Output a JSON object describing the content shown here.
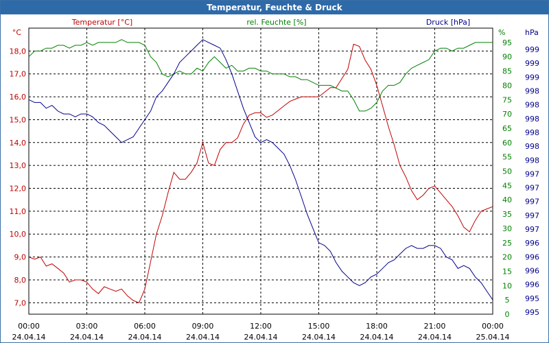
{
  "window": {
    "title": "Temperatur, Feuchte & Druck"
  },
  "chart_data": {
    "type": "line",
    "title": "Temperatur, Feuchte & Druck",
    "grid": true,
    "x_ticks": [
      {
        "time": "00:00",
        "date": "24.04.14"
      },
      {
        "time": "03:00",
        "date": "24.04.14"
      },
      {
        "time": "06:00",
        "date": "24.04.14"
      },
      {
        "time": "09:00",
        "date": "24.04.14"
      },
      {
        "time": "12:00",
        "date": "24.04.14"
      },
      {
        "time": "15:00",
        "date": "24.04.14"
      },
      {
        "time": "18:00",
        "date": "24.04.14"
      },
      {
        "time": "21:00",
        "date": "24.04.14"
      },
      {
        "time": "00:00",
        "date": "25.04.14"
      }
    ],
    "x_range_hours": [
      0,
      24
    ],
    "axes": {
      "temperature": {
        "label": "Temperatur [°C]",
        "unit": "°C",
        "color": "#c00000",
        "range": [
          6.5,
          19.0
        ],
        "ticks": [
          "18,0",
          "17,0",
          "16,0",
          "15,0",
          "14,0",
          "13,0",
          "12,0",
          "11,0",
          "10,0",
          "9,0",
          "8,0",
          "7,0"
        ],
        "tick_values": [
          18,
          17,
          16,
          15,
          14,
          13,
          12,
          11,
          10,
          9,
          8,
          7
        ]
      },
      "humidity": {
        "label": "rel. Feuchte [%]",
        "unit": "%",
        "color": "#008000",
        "range": [
          0,
          100
        ],
        "ticks": [
          "95",
          "90",
          "85",
          "80",
          "75",
          "70",
          "65",
          "60",
          "55",
          "50",
          "45",
          "40",
          "35",
          "30",
          "25",
          "20",
          "15",
          "10",
          "5",
          "0"
        ],
        "tick_values": [
          95,
          90,
          85,
          80,
          75,
          70,
          65,
          60,
          55,
          50,
          45,
          40,
          35,
          30,
          25,
          20,
          15,
          10,
          5,
          0
        ]
      },
      "pressure": {
        "label": "Druck [hPa]",
        "unit": "hPa",
        "color": "#00008b",
        "ticks": [
          "999",
          "999",
          "999",
          "998",
          "998",
          "998",
          "998",
          "998",
          "998",
          "997",
          "997",
          "997",
          "997",
          "997",
          "996",
          "996",
          "996",
          "996",
          "995",
          "995"
        ]
      }
    },
    "series": [
      {
        "name": "Temperatur [°C]",
        "axis": "temperature",
        "color": "#c00000",
        "x": [
          0,
          0.3,
          0.6,
          0.9,
          1.2,
          1.5,
          1.8,
          2.1,
          2.4,
          2.7,
          3.0,
          3.3,
          3.6,
          3.9,
          4.2,
          4.5,
          4.8,
          5.1,
          5.4,
          5.7,
          6.0,
          6.3,
          6.6,
          6.9,
          7.2,
          7.5,
          7.8,
          8.1,
          8.4,
          8.7,
          9.0,
          9.3,
          9.6,
          9.9,
          10.2,
          10.5,
          10.8,
          11.1,
          11.4,
          11.7,
          12.0,
          12.3,
          12.6,
          12.9,
          13.2,
          13.5,
          13.8,
          14.1,
          14.4,
          14.7,
          15.0,
          15.3,
          15.6,
          15.9,
          16.2,
          16.5,
          16.8,
          17.1,
          17.4,
          17.7,
          18.0,
          18.3,
          18.6,
          18.9,
          19.2,
          19.5,
          19.8,
          20.1,
          20.4,
          20.7,
          21.0,
          21.3,
          21.6,
          21.9,
          22.2,
          22.5,
          22.8,
          23.1,
          23.4,
          23.7,
          24.0
        ],
        "values": [
          9.0,
          8.9,
          9.0,
          8.6,
          8.7,
          8.5,
          8.3,
          7.9,
          8.0,
          8.0,
          7.9,
          7.6,
          7.4,
          7.7,
          7.6,
          7.5,
          7.6,
          7.3,
          7.1,
          7.0,
          7.6,
          8.8,
          10.0,
          10.8,
          11.8,
          12.7,
          12.4,
          12.4,
          12.7,
          13.1,
          14.0,
          13.1,
          13.0,
          13.7,
          14.0,
          14.0,
          14.2,
          14.8,
          15.2,
          15.3,
          15.3,
          15.1,
          15.2,
          15.4,
          15.6,
          15.8,
          15.9,
          16.0,
          16.0,
          16.0,
          16.0,
          16.2,
          16.4,
          16.4,
          16.8,
          17.2,
          18.3,
          18.2,
          17.6,
          17.2,
          16.5,
          15.6,
          14.7,
          13.9,
          13.0,
          12.5,
          11.9,
          11.5,
          11.7,
          12.0,
          12.1,
          11.8,
          11.5,
          11.2,
          10.8,
          10.3,
          10.1,
          10.6,
          11.0,
          11.1,
          11.2
        ]
      },
      {
        "name": "rel. Feuchte [%]",
        "axis": "humidity",
        "color": "#008000",
        "x": [
          0,
          0.3,
          0.6,
          0.9,
          1.2,
          1.5,
          1.8,
          2.1,
          2.4,
          2.7,
          3.0,
          3.3,
          3.6,
          3.9,
          4.2,
          4.5,
          4.8,
          5.1,
          5.4,
          5.7,
          6.0,
          6.3,
          6.6,
          6.9,
          7.2,
          7.5,
          7.8,
          8.1,
          8.4,
          8.7,
          9.0,
          9.3,
          9.6,
          9.9,
          10.2,
          10.5,
          10.8,
          11.1,
          11.4,
          11.7,
          12.0,
          12.3,
          12.6,
          12.9,
          13.2,
          13.5,
          13.8,
          14.1,
          14.4,
          14.7,
          15.0,
          15.3,
          15.6,
          15.9,
          16.2,
          16.5,
          16.8,
          17.1,
          17.4,
          17.7,
          18.0,
          18.3,
          18.6,
          18.9,
          19.2,
          19.5,
          19.8,
          20.1,
          20.4,
          20.7,
          21.0,
          21.3,
          21.6,
          21.9,
          22.2,
          22.5,
          22.8,
          23.1,
          23.4,
          23.7,
          24.0
        ],
        "values": [
          90,
          92,
          92,
          93,
          93,
          94,
          94,
          93,
          94,
          94,
          95,
          94,
          95,
          95,
          95,
          95,
          96,
          95,
          95,
          95,
          94,
          90,
          88,
          84,
          83,
          84,
          85,
          84,
          84,
          86,
          85,
          88,
          90,
          88,
          86,
          87,
          85,
          85,
          86,
          86,
          85,
          85,
          84,
          84,
          84,
          83,
          83,
          82,
          82,
          81,
          80,
          80,
          80,
          79,
          78,
          78,
          75,
          71,
          71,
          72,
          74,
          78,
          80,
          80,
          81,
          84,
          86,
          87,
          88,
          89,
          92,
          93,
          93,
          92,
          93,
          93,
          94,
          95,
          95,
          95,
          95
        ]
      },
      {
        "name": "Druck [hPa]",
        "axis": "humidity",
        "color": "#00008b",
        "x": [
          0,
          0.3,
          0.6,
          0.9,
          1.2,
          1.5,
          1.8,
          2.1,
          2.4,
          2.7,
          3.0,
          3.3,
          3.6,
          3.9,
          4.2,
          4.5,
          4.8,
          5.1,
          5.4,
          5.7,
          6.0,
          6.3,
          6.6,
          6.9,
          7.2,
          7.5,
          7.8,
          8.1,
          8.4,
          8.7,
          9.0,
          9.3,
          9.6,
          9.9,
          10.2,
          10.5,
          10.8,
          11.1,
          11.4,
          11.7,
          12.0,
          12.3,
          12.6,
          12.9,
          13.2,
          13.5,
          13.8,
          14.1,
          14.4,
          14.7,
          15.0,
          15.3,
          15.6,
          15.9,
          16.2,
          16.5,
          16.8,
          17.1,
          17.4,
          17.7,
          18.0,
          18.3,
          18.6,
          18.9,
          19.2,
          19.5,
          19.8,
          20.1,
          20.4,
          20.7,
          21.0,
          21.3,
          21.6,
          21.9,
          22.2,
          22.5,
          22.8,
          23.1,
          23.4,
          23.7,
          24.0
        ],
        "values": [
          75,
          74,
          74,
          72,
          73,
          71,
          70,
          70,
          69,
          70,
          70,
          69,
          67,
          66,
          64,
          62,
          60,
          61,
          62,
          65,
          68,
          71,
          76,
          78,
          81,
          84,
          88,
          90,
          92,
          94,
          96,
          95,
          94,
          93,
          89,
          84,
          78,
          72,
          67,
          62,
          60,
          61,
          60,
          58,
          56,
          52,
          47,
          41,
          35,
          30,
          25,
          24,
          22,
          18,
          15,
          13,
          11,
          10,
          11,
          13,
          14,
          16,
          18,
          19,
          21,
          23,
          24,
          23,
          23,
          24,
          24,
          23,
          20,
          19,
          16,
          17,
          16,
          13,
          11,
          8,
          5
        ]
      }
    ]
  }
}
